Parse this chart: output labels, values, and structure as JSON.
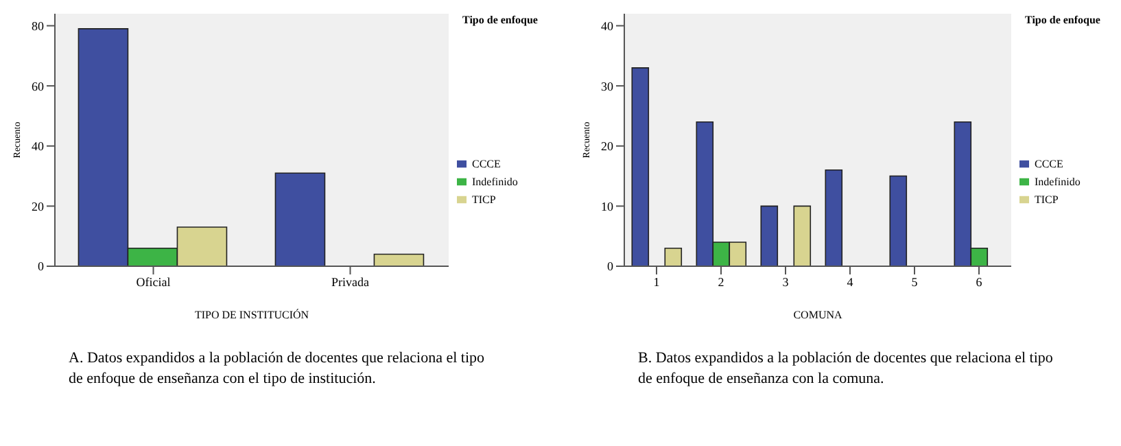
{
  "chart_data": [
    {
      "type": "bar",
      "categories": [
        "Oficial",
        "Privada"
      ],
      "xlabel": "TIPO DE INSTITUCIÓN",
      "ylabel": "Recuento",
      "legend_title": "Tipo de enfoque",
      "legend": "right",
      "ylim": [
        0,
        84
      ],
      "yticks": [
        0,
        20,
        40,
        60,
        80
      ],
      "grid": false,
      "series": [
        {
          "name": "CCCE",
          "color": "#3f4fa0",
          "values": [
            79,
            31
          ]
        },
        {
          "name": "Indefinido",
          "color": "#3db446",
          "values": [
            6,
            null
          ]
        },
        {
          "name": "TICP",
          "color": "#d8d490",
          "values": [
            13,
            4
          ]
        }
      ],
      "annotations": [
        "A. Datos expandidos a la población de docentes que relaciona el tipo de enfoque de enseñanza con el tipo de institución."
      ]
    },
    {
      "type": "bar",
      "categories": [
        "1",
        "2",
        "3",
        "4",
        "5",
        "6"
      ],
      "xlabel": "COMUNA",
      "ylabel": "Recuento",
      "legend_title": "Tipo de enfoque",
      "legend": "right",
      "ylim": [
        0,
        42
      ],
      "yticks": [
        0,
        10,
        20,
        30,
        40
      ],
      "grid": false,
      "series": [
        {
          "name": "CCCE",
          "color": "#3f4fa0",
          "values": [
            33,
            24,
            10,
            16,
            15,
            24
          ]
        },
        {
          "name": "Indefinido",
          "color": "#3db446",
          "values": [
            null,
            4,
            null,
            null,
            null,
            3
          ]
        },
        {
          "name": "TICP",
          "color": "#d8d490",
          "values": [
            3,
            4,
            10,
            null,
            null,
            null
          ]
        }
      ],
      "annotations": [
        "B. Datos expandidos a la población de docentes que relaciona el tipo de enfoque de enseñanza con la comuna."
      ]
    }
  ]
}
